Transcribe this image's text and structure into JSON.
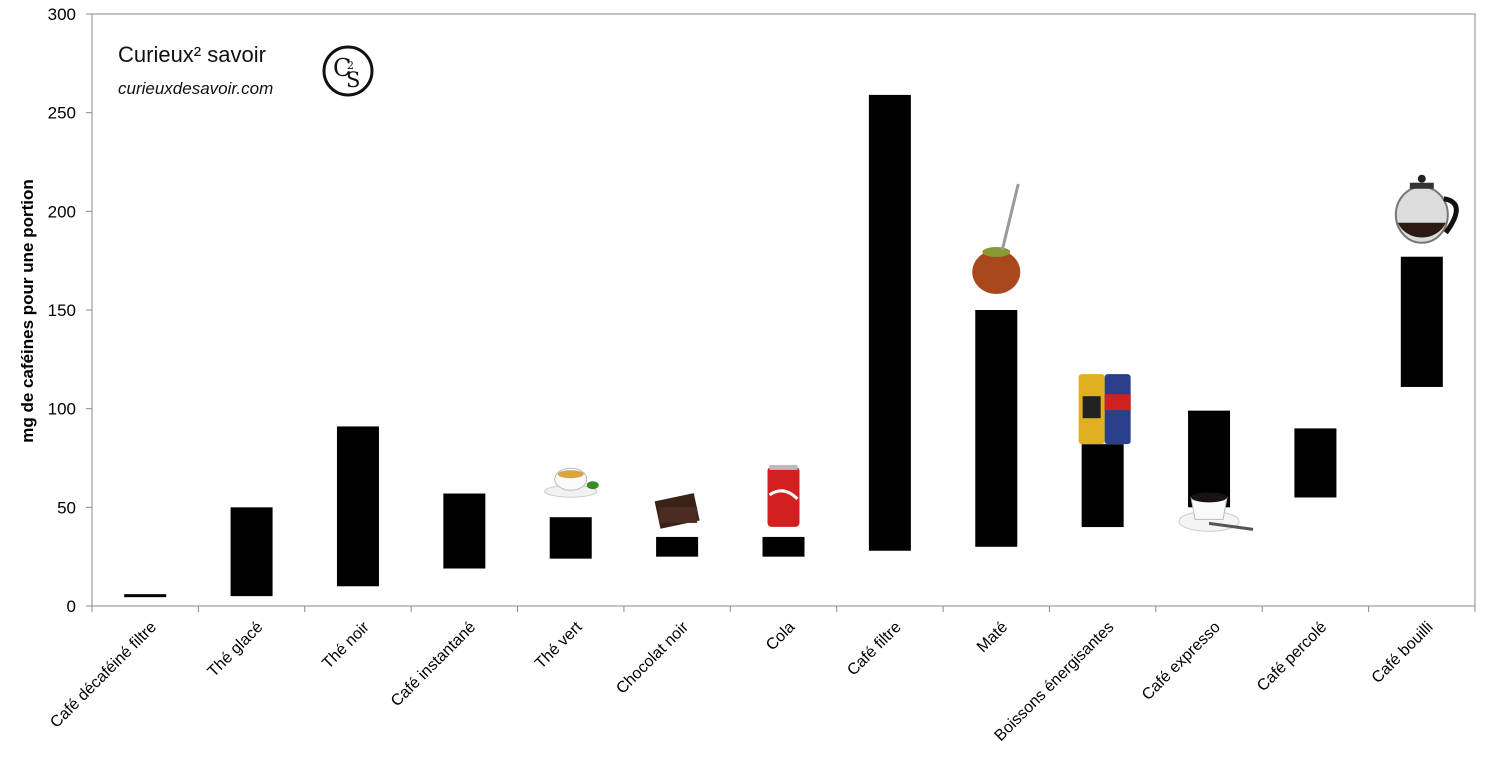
{
  "brand": {
    "title": "Curieux² savoir",
    "url": "curieuxdesavoir.com",
    "logo_text": "CS"
  },
  "chart_data": {
    "type": "bar",
    "subtype": "floating-range",
    "ylabel": "mg de caféines pour une portion",
    "ylim": [
      0,
      300
    ],
    "yticks": [
      0,
      50,
      100,
      150,
      200,
      250,
      300
    ],
    "grid": false,
    "bar_color": "#000000",
    "categories": [
      "Café décaféiné filtre",
      "Thé glacé",
      "Thé noir",
      "Café instantané",
      "Thé vert",
      "Chocolat noir",
      "Cola",
      "Café filtre",
      "Maté",
      "Boissons énergisantes",
      "Café expresso",
      "Café percolé",
      "Café bouilli"
    ],
    "ranges": [
      [
        5,
        6
      ],
      [
        5,
        50
      ],
      [
        10,
        91
      ],
      [
        19,
        57
      ],
      [
        24,
        45
      ],
      [
        25,
        35
      ],
      [
        25,
        35
      ],
      [
        28,
        259
      ],
      [
        30,
        150
      ],
      [
        40,
        82
      ],
      [
        50,
        99
      ],
      [
        55,
        90
      ],
      [
        111,
        177
      ]
    ],
    "icons": [
      null,
      null,
      null,
      null,
      "teacup-icon",
      "chocolate-icon",
      "cola-can-icon",
      null,
      "mate-gourd-icon",
      "energy-drink-cans-icon",
      "espresso-cup-icon",
      null,
      "french-press-icon"
    ]
  }
}
